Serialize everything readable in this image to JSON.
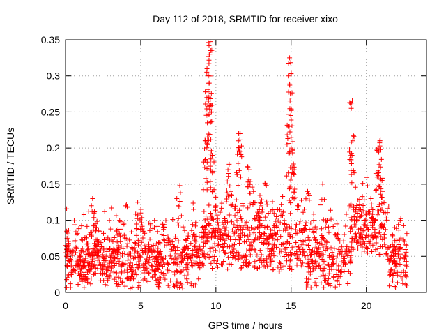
{
  "chart_data": {
    "type": "scatter",
    "title": "Day 112 of 2018, SRMTID for receiver xixo",
    "xlabel": "GPS time / hours",
    "ylabel": "SRMTID / TECUs",
    "xlim": [
      0,
      24
    ],
    "ylim": [
      0,
      0.35
    ],
    "xticks": [
      0,
      5,
      10,
      15,
      20
    ],
    "xtick_labels": [
      "0",
      "5",
      "10",
      "15",
      "20"
    ],
    "yticks": [
      0,
      0.05,
      0.1,
      0.15,
      0.2,
      0.25,
      0.3,
      0.35
    ],
    "ytick_labels": [
      "0",
      "0.05",
      "0.1",
      "0.15",
      "0.2",
      "0.25",
      "0.3",
      "0.35"
    ],
    "grid": true,
    "marker": "plus",
    "color": "#ff0000",
    "data_extent_hours": [
      0,
      22.7
    ],
    "series": [
      {
        "name": "SRMTID",
        "description_points": [
          [
            0.1,
            0.075
          ],
          [
            0.2,
            0.068
          ],
          [
            0.3,
            0.045
          ],
          [
            0.5,
            0.03
          ],
          [
            0.8,
            0.038
          ],
          [
            1.0,
            0.05
          ],
          [
            1.3,
            0.035
          ],
          [
            1.6,
            0.04
          ],
          [
            1.8,
            0.13
          ],
          [
            1.9,
            0.11
          ],
          [
            2.0,
            0.09
          ],
          [
            2.1,
            0.07
          ],
          [
            2.3,
            0.05
          ],
          [
            2.6,
            0.035
          ],
          [
            2.9,
            0.03
          ],
          [
            3.2,
            0.06
          ],
          [
            3.4,
            0.085
          ],
          [
            3.6,
            0.1
          ],
          [
            3.8,
            0.04
          ],
          [
            4.0,
            0.12
          ],
          [
            4.2,
            0.02
          ],
          [
            4.5,
            0.03
          ],
          [
            4.8,
            0.125
          ],
          [
            5.0,
            0.11
          ],
          [
            5.3,
            0.04
          ],
          [
            5.6,
            0.06
          ],
          [
            5.9,
            0.03
          ],
          [
            6.2,
            0.05
          ],
          [
            6.5,
            0.09
          ],
          [
            6.8,
            0.04
          ],
          [
            7.1,
            0.07
          ],
          [
            7.4,
            0.13
          ],
          [
            7.6,
            0.148
          ],
          [
            7.9,
            0.06
          ],
          [
            8.2,
            0.05
          ],
          [
            8.5,
            0.08
          ],
          [
            8.8,
            0.06
          ],
          [
            9.1,
            0.09
          ],
          [
            9.3,
            0.21
          ],
          [
            9.4,
            0.27
          ],
          [
            9.5,
            0.3
          ],
          [
            9.6,
            0.33
          ],
          [
            9.65,
            0.335
          ],
          [
            9.7,
            0.25
          ],
          [
            9.75,
            0.19
          ],
          [
            9.8,
            0.14
          ],
          [
            10.0,
            0.12
          ],
          [
            10.3,
            0.08
          ],
          [
            10.6,
            0.1
          ],
          [
            10.8,
            0.17
          ],
          [
            11.0,
            0.14
          ],
          [
            11.2,
            0.06
          ],
          [
            11.5,
            0.21
          ],
          [
            11.6,
            0.22
          ],
          [
            11.8,
            0.12
          ],
          [
            12.0,
            0.05
          ],
          [
            12.2,
            0.17
          ],
          [
            12.5,
            0.14
          ],
          [
            12.8,
            0.1
          ],
          [
            13.0,
            0.12
          ],
          [
            13.3,
            0.15
          ],
          [
            13.6,
            0.06
          ],
          [
            14.0,
            0.08
          ],
          [
            14.3,
            0.04
          ],
          [
            14.6,
            0.06
          ],
          [
            14.8,
            0.23
          ],
          [
            14.9,
            0.325
          ],
          [
            14.95,
            0.275
          ],
          [
            15.0,
            0.2
          ],
          [
            15.2,
            0.17
          ],
          [
            15.5,
            0.12
          ],
          [
            15.8,
            0.07
          ],
          [
            16.1,
            0.14
          ],
          [
            16.5,
            0.1
          ],
          [
            16.8,
            0.06
          ],
          [
            17.1,
            0.15
          ],
          [
            17.4,
            0.1
          ],
          [
            17.8,
            0.05
          ],
          [
            18.1,
            0.08
          ],
          [
            18.5,
            0.05
          ],
          [
            18.9,
            0.12
          ],
          [
            19.0,
            0.255
          ],
          [
            19.1,
            0.21
          ],
          [
            19.4,
            0.1
          ],
          [
            19.7,
            0.08
          ],
          [
            20.0,
            0.09
          ],
          [
            20.3,
            0.13
          ],
          [
            20.6,
            0.1
          ],
          [
            20.8,
            0.2
          ],
          [
            20.9,
            0.21
          ],
          [
            21.1,
            0.14
          ],
          [
            21.4,
            0.06
          ],
          [
            21.7,
            0.05
          ],
          [
            22.0,
            0.04
          ],
          [
            22.3,
            0.06
          ],
          [
            22.6,
            0.05
          ]
        ]
      }
    ]
  }
}
